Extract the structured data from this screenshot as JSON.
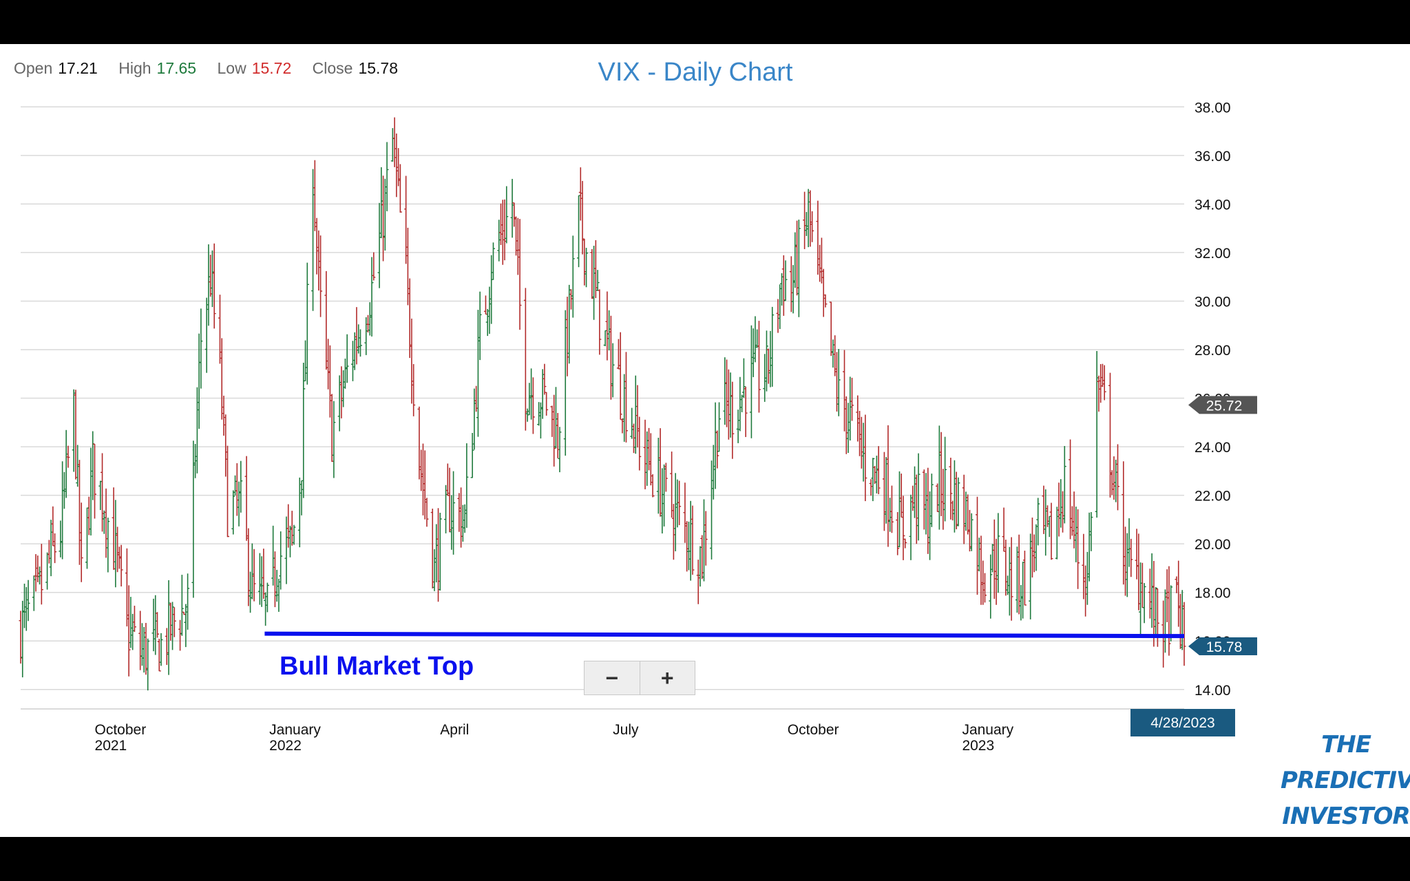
{
  "ohlc": {
    "open_label": "Open",
    "open": "17.21",
    "high_label": "High",
    "high": "17.65",
    "low_label": "Low",
    "low": "15.72",
    "close_label": "Close",
    "close": "15.78"
  },
  "zoom": {
    "minus": "−",
    "plus": "+"
  },
  "logo": {
    "line1": "THE",
    "line2": "PREDICTIVE",
    "line3": "INVESTOR"
  },
  "colors": {
    "up": "#1e7a3c",
    "down": "#b22a2a",
    "title": "#3a86c8",
    "annotation": "#0a10ee",
    "tag": "#1a5a80",
    "tag_alt": "#555555"
  },
  "chart_data": {
    "type": "ohlc",
    "title": "VIX - Daily Chart",
    "ylim": [
      13.2,
      39
    ],
    "yticks": [
      "38.00",
      "36.00",
      "34.00",
      "32.00",
      "30.00",
      "28.00",
      "26.00",
      "24.00",
      "22.00",
      "20.00",
      "18.00",
      "16.00",
      "14.00"
    ],
    "xticks": [
      {
        "date": "2021-10-01",
        "line1": "October",
        "line2": "2021"
      },
      {
        "date": "2022-01-01",
        "line1": "January",
        "line2": "2022"
      },
      {
        "date": "2022-04-01",
        "line1": "April",
        "line2": ""
      },
      {
        "date": "2022-07-01",
        "line1": "July",
        "line2": ""
      },
      {
        "date": "2022-10-01",
        "line1": "October",
        "line2": ""
      },
      {
        "date": "2023-01-01",
        "line1": "January",
        "line2": "2023"
      }
    ],
    "x_start": "2021-08-23",
    "x_end": "2023-04-28",
    "close_series": [
      [
        "2021-08-23",
        16.5
      ],
      [
        "2021-09-01",
        17.8
      ],
      [
        "2021-09-08",
        19.5
      ],
      [
        "2021-09-13",
        20.5
      ],
      [
        "2021-09-20",
        25.5
      ],
      [
        "2021-09-24",
        18.5
      ],
      [
        "2021-09-30",
        23.2
      ],
      [
        "2021-10-05",
        22.0
      ],
      [
        "2021-10-12",
        19.5
      ],
      [
        "2021-10-18",
        16.5
      ],
      [
        "2021-10-25",
        15.5
      ],
      [
        "2021-11-05",
        15.8
      ],
      [
        "2021-11-12",
        16.8
      ],
      [
        "2021-11-19",
        17.5
      ],
      [
        "2021-11-26",
        28.5
      ],
      [
        "2021-12-01",
        31.0
      ],
      [
        "2021-12-06",
        27.0
      ],
      [
        "2021-12-10",
        21.5
      ],
      [
        "2021-12-17",
        21.5
      ],
      [
        "2021-12-23",
        18.0
      ],
      [
        "2021-12-31",
        17.2
      ],
      [
        "2022-01-06",
        19.5
      ],
      [
        "2022-01-13",
        20.0
      ],
      [
        "2022-01-18",
        23.5
      ],
      [
        "2022-01-24",
        35.5
      ],
      [
        "2022-01-27",
        30.5
      ],
      [
        "2022-02-03",
        24.5
      ],
      [
        "2022-02-14",
        28.0
      ],
      [
        "2022-02-24",
        30.5
      ],
      [
        "2022-03-01",
        33.0
      ],
      [
        "2022-03-07",
        36.5
      ],
      [
        "2022-03-14",
        31.0
      ],
      [
        "2022-03-21",
        23.5
      ],
      [
        "2022-03-29",
        19.0
      ],
      [
        "2022-04-06",
        21.5
      ],
      [
        "2022-04-14",
        21.0
      ],
      [
        "2022-04-22",
        28.5
      ],
      [
        "2022-04-28",
        31.5
      ],
      [
        "2022-05-09",
        34.0
      ],
      [
        "2022-05-16",
        26.5
      ],
      [
        "2022-05-26",
        26.0
      ],
      [
        "2022-06-02",
        24.5
      ],
      [
        "2022-06-13",
        33.5
      ],
      [
        "2022-06-21",
        30.5
      ],
      [
        "2022-06-28",
        28.0
      ],
      [
        "2022-07-07",
        26.0
      ],
      [
        "2022-07-18",
        23.5
      ],
      [
        "2022-07-28",
        22.0
      ],
      [
        "2022-08-05",
        21.0
      ],
      [
        "2022-08-17",
        19.5
      ],
      [
        "2022-08-26",
        25.5
      ],
      [
        "2022-09-02",
        25.5
      ],
      [
        "2022-09-13",
        27.0
      ],
      [
        "2022-09-20",
        27.0
      ],
      [
        "2022-09-28",
        31.0
      ],
      [
        "2022-10-03",
        30.5
      ],
      [
        "2022-10-12",
        33.5
      ],
      [
        "2022-10-20",
        29.5
      ],
      [
        "2022-10-28",
        26.0
      ],
      [
        "2022-11-04",
        25.0
      ],
      [
        "2022-11-10",
        23.5
      ],
      [
        "2022-11-21",
        22.5
      ],
      [
        "2022-11-30",
        20.5
      ],
      [
        "2022-12-07",
        22.0
      ],
      [
        "2022-12-14",
        21.0
      ],
      [
        "2022-12-20",
        22.5
      ],
      [
        "2022-12-28",
        22.0
      ],
      [
        "2023-01-05",
        21.0
      ],
      [
        "2023-01-12",
        18.8
      ],
      [
        "2023-01-20",
        19.5
      ],
      [
        "2023-01-27",
        18.5
      ],
      [
        "2023-02-03",
        18.5
      ],
      [
        "2023-02-10",
        20.5
      ],
      [
        "2023-02-17",
        20.0
      ],
      [
        "2023-02-24",
        22.5
      ],
      [
        "2023-03-03",
        19.5
      ],
      [
        "2023-03-08",
        18.5
      ],
      [
        "2023-03-13",
        26.5
      ],
      [
        "2023-03-17",
        25.5
      ],
      [
        "2023-03-22",
        22.5
      ],
      [
        "2023-03-29",
        19.0
      ],
      [
        "2023-04-05",
        18.5
      ],
      [
        "2023-04-13",
        17.0
      ],
      [
        "2023-04-18",
        16.8
      ],
      [
        "2023-04-24",
        17.5
      ],
      [
        "2023-04-28",
        15.78
      ]
    ],
    "annotation_line": {
      "label": "Bull Market Top",
      "from": [
        "2021-12-31",
        16.3
      ],
      "to": [
        "2023-04-28",
        16.2
      ]
    },
    "last_price_tag": "15.78",
    "secondary_tag": "25.72",
    "date_tag": "4/28/2023"
  }
}
